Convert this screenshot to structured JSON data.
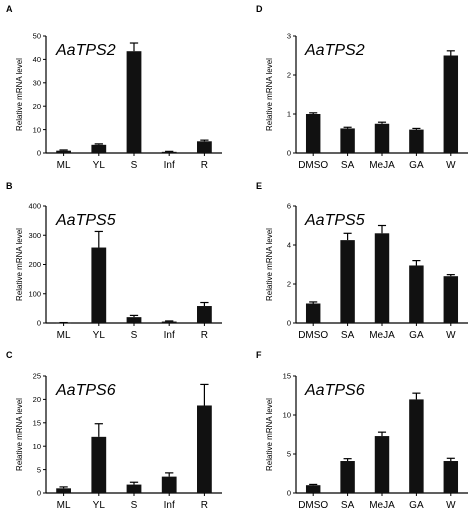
{
  "colors": {
    "bar": "#111111",
    "axis": "#000000"
  },
  "chart_data": [
    {
      "panel": "A",
      "type": "bar",
      "title": "AaTPS2",
      "ylabel": "Relative mRNA level",
      "categories": [
        "ML",
        "YL",
        "S",
        "Inf",
        "R"
      ],
      "values": [
        1,
        3.5,
        43.5,
        0.5,
        5
      ],
      "errors": [
        0.3,
        0.4,
        3.5,
        0.2,
        0.5
      ],
      "ylim": [
        0,
        50
      ],
      "yticks": [
        0,
        10,
        20,
        30,
        40,
        50
      ]
    },
    {
      "panel": "B",
      "type": "bar",
      "title": "AaTPS5",
      "ylabel": "Relative mRNA level",
      "categories": [
        "ML",
        "YL",
        "S",
        "Inf",
        "R"
      ],
      "values": [
        1,
        258,
        20,
        5,
        58
      ],
      "errors": [
        0.5,
        55,
        6,
        2,
        12
      ],
      "ylim": [
        0,
        400
      ],
      "yticks": [
        0,
        100,
        200,
        300,
        400
      ]
    },
    {
      "panel": "C",
      "type": "bar",
      "title": "AaTPS6",
      "ylabel": "Relative mRNA level",
      "categories": [
        "ML",
        "YL",
        "S",
        "Inf",
        "R"
      ],
      "values": [
        1,
        12,
        1.8,
        3.5,
        18.7
      ],
      "errors": [
        0.3,
        2.8,
        0.5,
        0.8,
        4.5
      ],
      "ylim": [
        0,
        25
      ],
      "yticks": [
        0,
        5,
        10,
        15,
        20,
        25
      ]
    },
    {
      "panel": "D",
      "type": "bar",
      "title": "AaTPS2",
      "ylabel": "Relative mRNA level",
      "categories": [
        "DMSO",
        "SA",
        "MeJA",
        "GA",
        "W"
      ],
      "values": [
        1,
        0.63,
        0.75,
        0.6,
        2.5
      ],
      "errors": [
        0.03,
        0.03,
        0.04,
        0.03,
        0.12
      ],
      "ylim": [
        0,
        3
      ],
      "yticks": [
        0,
        1,
        2,
        3
      ]
    },
    {
      "panel": "E",
      "type": "bar",
      "title": "AaTPS5",
      "ylabel": "Relative mRNA level",
      "categories": [
        "DMSO",
        "SA",
        "MeJA",
        "GA",
        "W"
      ],
      "values": [
        1,
        4.25,
        4.6,
        2.95,
        2.4
      ],
      "errors": [
        0.08,
        0.35,
        0.4,
        0.25,
        0.08
      ],
      "ylim": [
        0,
        6
      ],
      "yticks": [
        0,
        2,
        4,
        6
      ]
    },
    {
      "panel": "F",
      "type": "bar",
      "title": "AaTPS6",
      "ylabel": "Relative mRNA level",
      "categories": [
        "DMSO",
        "SA",
        "MeJA",
        "GA",
        "W"
      ],
      "values": [
        1,
        4.1,
        7.3,
        12,
        4.1
      ],
      "errors": [
        0.1,
        0.3,
        0.5,
        0.8,
        0.35
      ],
      "ylim": [
        0,
        15
      ],
      "yticks": [
        0,
        5,
        10,
        15
      ]
    }
  ]
}
